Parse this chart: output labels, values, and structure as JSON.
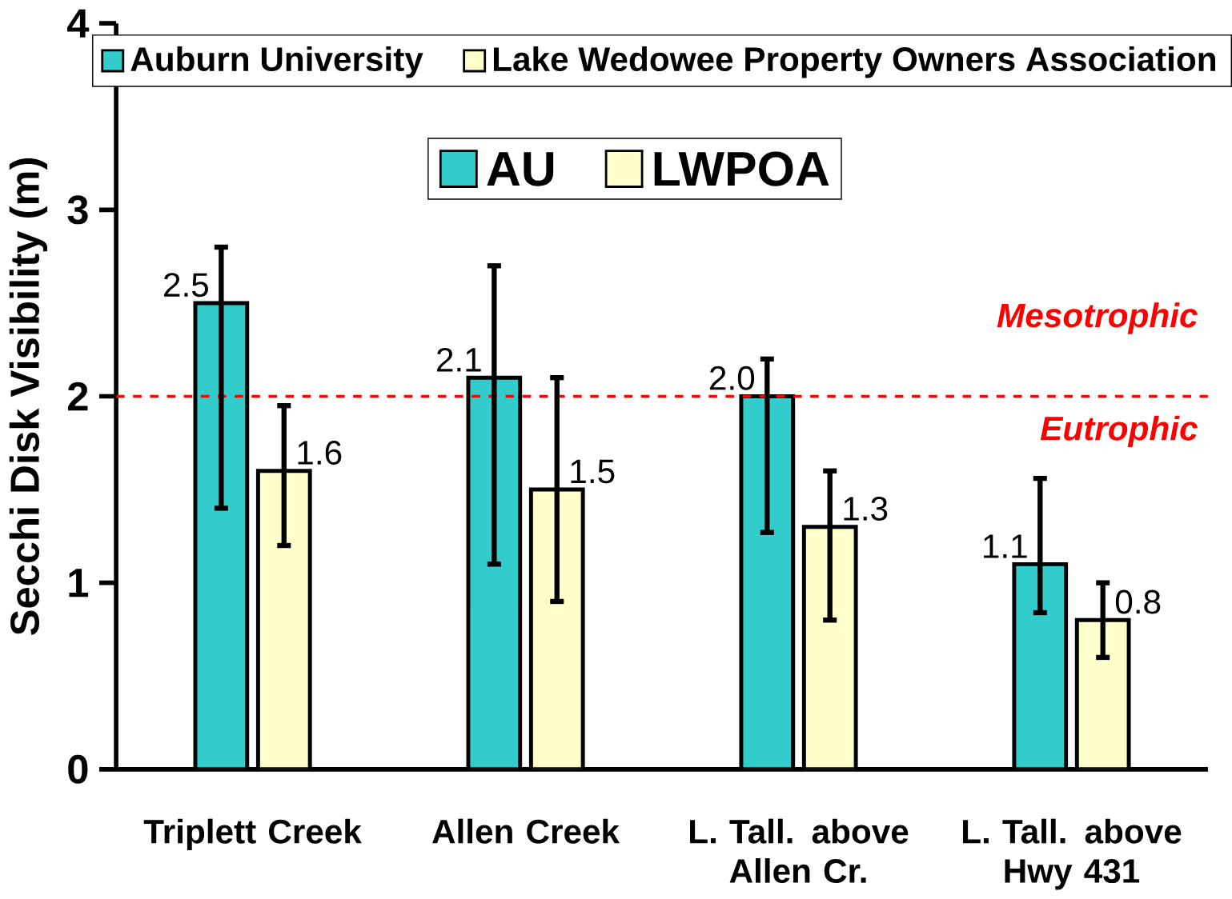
{
  "chart_data": {
    "type": "bar",
    "ylabel": "Secchi Disk Visibility (m)",
    "categories": [
      "Triplett Creek",
      "Allen Creek",
      "L. Tall. above Allen Cr.",
      "L. Tall. above Hwy 431"
    ],
    "series": [
      {
        "name": "Auburn University",
        "color": "#33cccc",
        "values": [
          2.5,
          2.1,
          2.0,
          1.1
        ],
        "value_labels": [
          "2.5",
          "2.1",
          "2.0",
          "1.1"
        ],
        "errors": [
          [
            1.4,
            2.8
          ],
          [
            1.1,
            2.7
          ],
          [
            1.27,
            2.2
          ],
          [
            0.84,
            1.56
          ]
        ]
      },
      {
        "name": "Lake Wedowee Property Owners Association",
        "color": "#ffffcc",
        "values": [
          1.6,
          1.5,
          1.3,
          0.8
        ],
        "value_labels": [
          "1.6",
          "1.5",
          "1.3",
          "0.8"
        ],
        "errors": [
          [
            1.2,
            1.95
          ],
          [
            0.9,
            2.1
          ],
          [
            0.8,
            1.6
          ],
          [
            0.6,
            1.0
          ]
        ]
      }
    ],
    "ylim": [
      0,
      4
    ],
    "yticks": [
      0,
      1,
      2,
      3,
      4
    ],
    "grid": false,
    "legend": "top",
    "ref_lines": [
      {
        "axis": "y",
        "value": 2,
        "color": "#ff0000",
        "line_style": "dashed"
      }
    ],
    "annotations": [
      "AU",
      "LWPOA",
      "Mesotrophic",
      "Eutrophic"
    ]
  }
}
